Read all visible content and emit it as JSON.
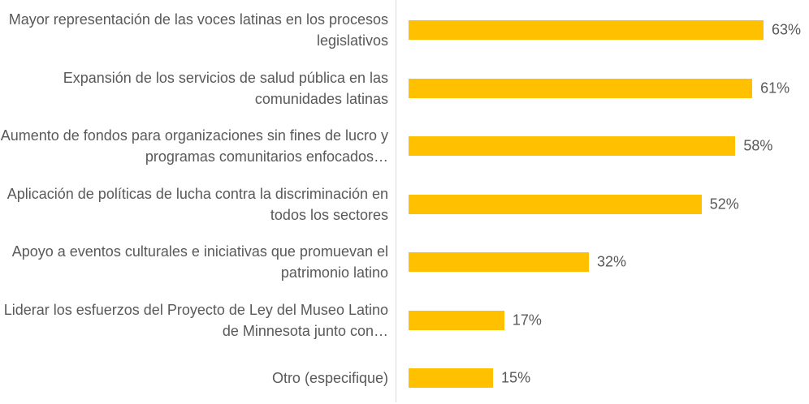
{
  "chart_data": {
    "type": "bar",
    "orientation": "horizontal",
    "color": "#ffc000",
    "categories": [
      "Mayor representación de las voces latinas en los procesos legislativos",
      "Expansión de los servicios de salud pública en las comunidades latinas",
      "Aumento de fondos para organizaciones sin fines de lucro y programas comunitarios enfocados…",
      "Aplicación de políticas de lucha contra la discriminación en todos los sectores",
      "Apoyo a eventos culturales e iniciativas que promuevan el patrimonio latino",
      "Liderar los esfuerzos del Proyecto de Ley del Museo Latino de Minnesota junto con…",
      "Otro (especifique)"
    ],
    "values": [
      63,
      61,
      58,
      52,
      32,
      17,
      15
    ],
    "value_labels": [
      "63%",
      "61%",
      "58%",
      "52%",
      "32%",
      "17%",
      "15%"
    ]
  }
}
